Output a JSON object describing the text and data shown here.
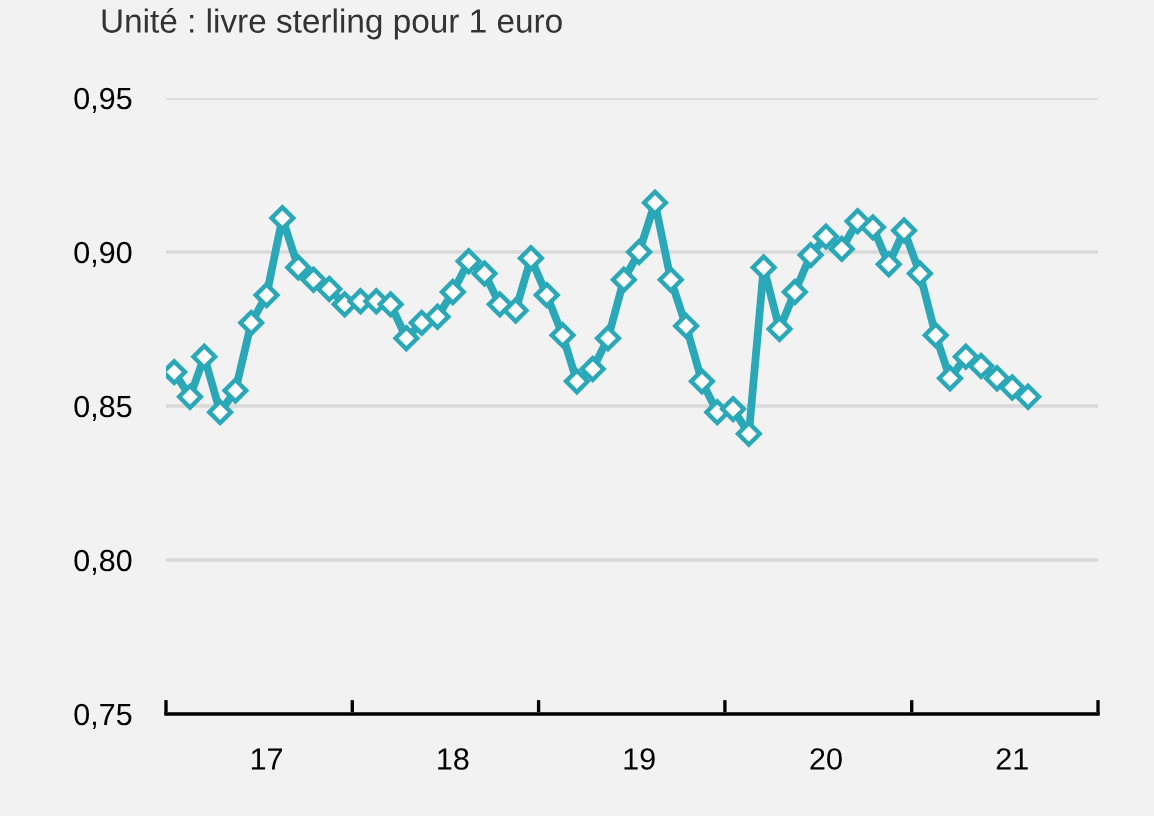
{
  "chart_data": {
    "type": "line",
    "title": "Unité : livre sterling pour 1 euro",
    "x": [
      "2017-01",
      "2017-02",
      "2017-03",
      "2017-04",
      "2017-05",
      "2017-06",
      "2017-07",
      "2017-08",
      "2017-09",
      "2017-10",
      "2017-11",
      "2017-12",
      "2018-01",
      "2018-02",
      "2018-03",
      "2018-04",
      "2018-05",
      "2018-06",
      "2018-07",
      "2018-08",
      "2018-09",
      "2018-10",
      "2018-11",
      "2018-12",
      "2019-01",
      "2019-02",
      "2019-03",
      "2019-04",
      "2019-05",
      "2019-06",
      "2019-07",
      "2019-08",
      "2019-09",
      "2019-10",
      "2019-11",
      "2019-12",
      "2020-01",
      "2020-02",
      "2020-03",
      "2020-04",
      "2020-05",
      "2020-06",
      "2020-07",
      "2020-08",
      "2020-09",
      "2020-10",
      "2020-11",
      "2020-12",
      "2021-01",
      "2021-02",
      "2021-03",
      "2021-04",
      "2021-05",
      "2021-06",
      "2021-07",
      "2021-08"
    ],
    "series": [
      {
        "color": "#2aa8b8",
        "values": [
          0.861,
          0.853,
          0.866,
          0.848,
          0.855,
          0.877,
          0.886,
          0.911,
          0.895,
          0.891,
          0.888,
          0.883,
          0.884,
          0.884,
          0.883,
          0.872,
          0.877,
          0.879,
          0.887,
          0.897,
          0.893,
          0.883,
          0.881,
          0.898,
          0.886,
          0.873,
          0.858,
          0.862,
          0.872,
          0.891,
          0.9,
          0.916,
          0.891,
          0.876,
          0.858,
          0.848,
          0.849,
          0.841,
          0.895,
          0.875,
          0.887,
          0.899,
          0.905,
          0.901,
          0.91,
          0.908,
          0.896,
          0.907,
          0.893,
          0.873,
          0.859,
          0.866,
          0.863,
          0.859,
          0.856,
          0.853
        ]
      }
    ],
    "xlim": [
      "2016-12-16",
      "2021-12-16"
    ],
    "xticks": [
      {
        "value": "2016-12-16",
        "label": null
      },
      {
        "value": "2017-07-01",
        "label": "17"
      },
      {
        "value": "2017-12-16",
        "label": null
      },
      {
        "value": "2018-07-01",
        "label": "18"
      },
      {
        "value": "2018-12-16",
        "label": null
      },
      {
        "value": "2019-07-01",
        "label": "19"
      },
      {
        "value": "2019-12-16",
        "label": null
      },
      {
        "value": "2020-07-01",
        "label": "20"
      },
      {
        "value": "2020-12-16",
        "label": null
      },
      {
        "value": "2021-07-01",
        "label": "21"
      },
      {
        "value": "2021-12-16",
        "label": null
      }
    ],
    "ylim": [
      0.75,
      0.95
    ],
    "yticks": [
      {
        "value": 0.75,
        "label": "0,75"
      },
      {
        "value": 0.8,
        "label": "0,80"
      },
      {
        "value": 0.85,
        "label": "0,85"
      },
      {
        "value": 0.9,
        "label": "0,90"
      },
      {
        "value": 0.95,
        "label": "0,95"
      }
    ],
    "grid": "y",
    "marker": "diamond",
    "line_style": "solid"
  }
}
